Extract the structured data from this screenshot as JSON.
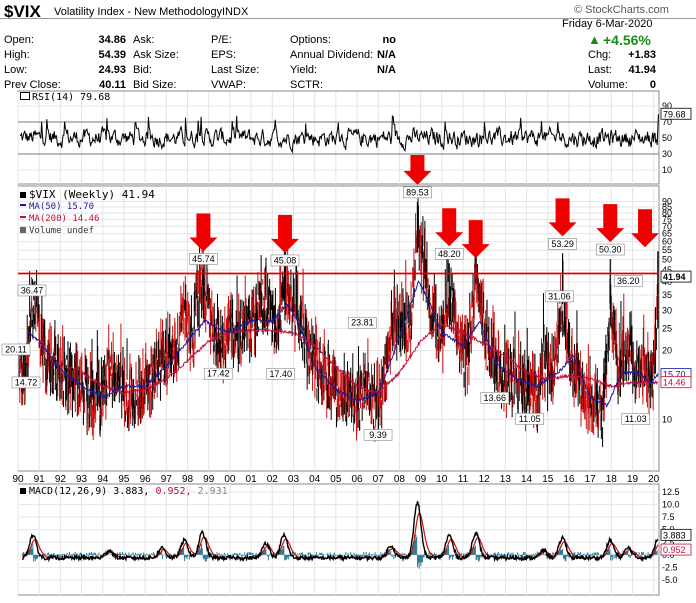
{
  "header": {
    "symbol": "$VIX",
    "description": "Volatility Index - New Methodology",
    "exchange": "INDX",
    "watermark": "© StockCharts.com",
    "date": "Friday  6-Mar-2020",
    "change_pct": "+4.56%",
    "col1": [
      {
        "label": "Open:",
        "value": "34.86"
      },
      {
        "label": "High:",
        "value": "54.39"
      },
      {
        "label": "Low:",
        "value": "24.93"
      },
      {
        "label": "Prev Close:",
        "value": "40.11"
      }
    ],
    "col2": [
      {
        "label": "Ask:",
        "value": ""
      },
      {
        "label": "Ask Size:",
        "value": ""
      },
      {
        "label": "Bid:",
        "value": ""
      },
      {
        "label": "Bid Size:",
        "value": ""
      }
    ],
    "col3": [
      {
        "label": "P/E:",
        "value": ""
      },
      {
        "label": "EPS:",
        "value": ""
      },
      {
        "label": "Last Size:",
        "value": ""
      },
      {
        "label": "VWAP:",
        "value": ""
      }
    ],
    "col4": [
      {
        "label": "Options:",
        "value": "no"
      },
      {
        "label": "Annual Dividend:",
        "value": "N/A"
      },
      {
        "label": "Yield:",
        "value": "N/A"
      },
      {
        "label": "SCTR:",
        "value": ""
      }
    ],
    "col5": [
      {
        "label": "Chg:",
        "value": "+1.83"
      },
      {
        "label": "Last:",
        "value": "41.94"
      },
      {
        "label": "Volume:",
        "value": "0"
      }
    ]
  },
  "chart_data": [
    {
      "type": "line",
      "panel": "rsi",
      "legend": "RSI(14) 79.68",
      "current_value": "79.68",
      "y_ticks": [
        "90",
        "70",
        "50",
        "30",
        "10"
      ],
      "ylim": [
        0,
        100
      ],
      "levels": [
        30,
        70
      ],
      "colors": {
        "line": "#000000"
      }
    },
    {
      "type": "bar",
      "panel": "price",
      "style": "ohlc",
      "scale": "log",
      "legend": [
        {
          "text": "$VIX (Weekly) 41.94",
          "color": "#000000",
          "icon": "black-square-icon"
        },
        {
          "text": "MA(50) 15.70",
          "color": "#1a1aa0",
          "icon": "blue-line-icon"
        },
        {
          "text": "MA(200) 14.46",
          "color": "#c0103a",
          "icon": "red-line-icon"
        },
        {
          "text": "Volume undef",
          "color": "#555555",
          "icon": "volume-bars-icon"
        }
      ],
      "ylim": [
        6.5,
        95
      ],
      "y_ticks": [
        "90",
        "85",
        "80",
        "75",
        "70",
        "65",
        "60",
        "55",
        "50",
        "45",
        "40",
        "35",
        "30",
        "25",
        "20",
        "15",
        "10"
      ],
      "current_labels": [
        {
          "value": 41.94,
          "text": "41.94",
          "style": "black"
        },
        {
          "value": 15.7,
          "text": "15.70",
          "style": "blue"
        },
        {
          "value": 14.46,
          "text": "14.46",
          "style": "red"
        }
      ],
      "horizontal_line": 43.5,
      "x_ticks": [
        "90",
        "91",
        "92",
        "93",
        "94",
        "95",
        "96",
        "97",
        "98",
        "99",
        "00",
        "01",
        "02",
        "03",
        "04",
        "05",
        "06",
        "07",
        "08",
        "09",
        "10",
        "11",
        "12",
        "13",
        "14",
        "15",
        "16",
        "17",
        "18",
        "19",
        "20"
      ],
      "x_range": [
        1990.0,
        2020.25
      ],
      "colors": {
        "up": "#000000",
        "down": "#cc1111",
        "ma50": "#1a1aa0",
        "ma200": "#c0103a",
        "hline": "#dd0000",
        "arrow": "#ee0000"
      },
      "annotations": [
        {
          "x": 1990.05,
          "y": 36.47,
          "text": "36.47"
        },
        {
          "x": 1990.0,
          "y": 20.11,
          "text": "20.11"
        },
        {
          "x": 1990.3,
          "y": 14.72,
          "text": "14.72"
        },
        {
          "x": 1998.75,
          "y": 45.74,
          "text": "45.74"
        },
        {
          "x": 1999.45,
          "y": 17.42,
          "text": "17.42"
        },
        {
          "x": 2002.6,
          "y": 45.08,
          "text": "45.08"
        },
        {
          "x": 2002.4,
          "y": 17.4,
          "text": "17.40"
        },
        {
          "x": 2006.25,
          "y": 23.81,
          "text": "23.81"
        },
        {
          "x": 2006.85,
          "y": 9.39,
          "text": "9.39"
        },
        {
          "x": 2008.85,
          "y": 89.53,
          "text": "89.53"
        },
        {
          "x": 2010.35,
          "y": 48.2,
          "text": "48.20"
        },
        {
          "x": 2012.5,
          "y": 13.66,
          "text": "13.66"
        },
        {
          "x": 2014.15,
          "y": 11.05,
          "text": "11.05"
        },
        {
          "x": 2015.55,
          "y": 31.06,
          "text": "31.06"
        },
        {
          "x": 2015.7,
          "y": 53.29,
          "text": "53.29"
        },
        {
          "x": 2017.95,
          "y": 50.3,
          "text": "50.30"
        },
        {
          "x": 2018.8,
          "y": 36.2,
          "text": "36.20"
        },
        {
          "x": 2019.15,
          "y": 11.03,
          "text": "11.03"
        }
      ],
      "arrows": [
        1998.75,
        2002.6,
        2008.85,
        2010.35,
        2011.6,
        2015.7,
        2017.95,
        2020.0
      ],
      "anchors": [
        [
          1990.0,
          17
        ],
        [
          1990.3,
          14.7
        ],
        [
          1990.6,
          27
        ],
        [
          1990.8,
          35
        ],
        [
          1991.0,
          24
        ],
        [
          1991.3,
          18
        ],
        [
          1991.7,
          17
        ],
        [
          1992.0,
          16
        ],
        [
          1992.5,
          15
        ],
        [
          1993.0,
          13
        ],
        [
          1993.5,
          12
        ],
        [
          1994.0,
          11.5
        ],
        [
          1994.3,
          17
        ],
        [
          1994.6,
          15
        ],
        [
          1995.0,
          13
        ],
        [
          1995.5,
          12
        ],
        [
          1996.0,
          13.5
        ],
        [
          1996.5,
          16
        ],
        [
          1997.0,
          18
        ],
        [
          1997.5,
          20
        ],
        [
          1997.85,
          30
        ],
        [
          1998.2,
          22
        ],
        [
          1998.75,
          40
        ],
        [
          1999.2,
          25
        ],
        [
          1999.5,
          20
        ],
        [
          2000.0,
          24
        ],
        [
          2000.5,
          22
        ],
        [
          2001.0,
          26
        ],
        [
          2001.7,
          33
        ],
        [
          2002.2,
          22
        ],
        [
          2002.6,
          40
        ],
        [
          2003.0,
          30
        ],
        [
          2003.3,
          26
        ],
        [
          2003.7,
          19
        ],
        [
          2004.0,
          17
        ],
        [
          2004.5,
          15
        ],
        [
          2005.0,
          13
        ],
        [
          2005.5,
          12
        ],
        [
          2006.0,
          11.5
        ],
        [
          2006.5,
          14
        ],
        [
          2006.85,
          11
        ],
        [
          2007.3,
          14
        ],
        [
          2007.6,
          25
        ],
        [
          2008.0,
          26
        ],
        [
          2008.5,
          24
        ],
        [
          2008.85,
          65
        ],
        [
          2009.2,
          42
        ],
        [
          2009.6,
          27
        ],
        [
          2010.0,
          22
        ],
        [
          2010.35,
          36
        ],
        [
          2010.8,
          21
        ],
        [
          2011.2,
          18
        ],
        [
          2011.6,
          40
        ],
        [
          2012.0,
          23
        ],
        [
          2012.5,
          17
        ],
        [
          2013.0,
          14
        ],
        [
          2013.5,
          15
        ],
        [
          2014.0,
          13
        ],
        [
          2014.5,
          12
        ],
        [
          2014.8,
          18
        ],
        [
          2015.2,
          14
        ],
        [
          2015.7,
          33
        ],
        [
          2016.0,
          20
        ],
        [
          2016.5,
          14
        ],
        [
          2017.0,
          11.5
        ],
        [
          2017.6,
          10.5
        ],
        [
          2017.95,
          30
        ],
        [
          2018.3,
          15
        ],
        [
          2018.8,
          22
        ],
        [
          2019.2,
          15
        ],
        [
          2019.6,
          16
        ],
        [
          2019.9,
          13.5
        ],
        [
          2020.1,
          20
        ],
        [
          2020.2,
          40
        ]
      ],
      "ma50_anchors": [
        [
          1990.5,
          24
        ],
        [
          1991.0,
          22
        ],
        [
          1992.0,
          16.5
        ],
        [
          1993.0,
          14
        ],
        [
          1994.0,
          12.5
        ],
        [
          1995.0,
          14
        ],
        [
          1996.0,
          14
        ],
        [
          1997.0,
          17
        ],
        [
          1998.0,
          22
        ],
        [
          1998.8,
          27
        ],
        [
          1999.5,
          25
        ],
        [
          2000.0,
          24
        ],
        [
          2001.0,
          27
        ],
        [
          2002.0,
          27
        ],
        [
          2002.7,
          32
        ],
        [
          2003.2,
          27
        ],
        [
          2004.0,
          17
        ],
        [
          2005.0,
          13.5
        ],
        [
          2006.0,
          12
        ],
        [
          2007.0,
          13
        ],
        [
          2007.5,
          17
        ],
        [
          2008.0,
          23
        ],
        [
          2008.9,
          40
        ],
        [
          2009.4,
          33
        ],
        [
          2010.0,
          24
        ],
        [
          2011.0,
          21
        ],
        [
          2011.8,
          27
        ],
        [
          2012.5,
          18
        ],
        [
          2013.5,
          15
        ],
        [
          2014.5,
          14
        ],
        [
          2015.5,
          16
        ],
        [
          2016.2,
          19
        ],
        [
          2017.0,
          12.5
        ],
        [
          2017.8,
          11.5
        ],
        [
          2018.5,
          16
        ],
        [
          2019.2,
          16
        ],
        [
          2019.9,
          14.5
        ],
        [
          2020.2,
          15.7
        ]
      ],
      "ma200_anchors": [
        [
          1993.0,
          16
        ],
        [
          1994.0,
          14
        ],
        [
          1995.0,
          13
        ],
        [
          1996.0,
          13.5
        ],
        [
          1997.0,
          15
        ],
        [
          1998.0,
          18
        ],
        [
          1999.0,
          22
        ],
        [
          2000.0,
          24
        ],
        [
          2001.0,
          24.5
        ],
        [
          2002.0,
          24.5
        ],
        [
          2003.0,
          24
        ],
        [
          2004.0,
          21
        ],
        [
          2005.0,
          17
        ],
        [
          2006.0,
          14
        ],
        [
          2007.0,
          13
        ],
        [
          2008.0,
          16
        ],
        [
          2009.0,
          22
        ],
        [
          2010.0,
          26
        ],
        [
          2011.0,
          24
        ],
        [
          2012.0,
          21.5
        ],
        [
          2013.0,
          19
        ],
        [
          2014.0,
          16
        ],
        [
          2015.0,
          15
        ],
        [
          2016.0,
          15.5
        ],
        [
          2017.0,
          15
        ],
        [
          2018.0,
          14
        ],
        [
          2019.0,
          14.5
        ],
        [
          2020.2,
          14.46
        ]
      ]
    },
    {
      "type": "line",
      "panel": "macd",
      "legend": [
        {
          "text": "MACD(12,26,9) 3.883,",
          "color": "#000000"
        },
        {
          "text": " 0.952,",
          "color": "#c0103a"
        },
        {
          "text": " 2.931",
          "color": "#888888"
        }
      ],
      "ylim": [
        -5.0,
        12.5
      ],
      "y_ticks": [
        "12.5",
        "10.0",
        "7.5",
        "5.0",
        "2.5",
        "0.0",
        "-2.5",
        "-5.0"
      ],
      "current_labels": [
        {
          "value": 3.883,
          "text": "3.883",
          "style": "black"
        },
        {
          "value": 0.952,
          "text": "0.952",
          "style": "red"
        }
      ],
      "colors": {
        "macd": "#000000",
        "signal": "#cc1111",
        "hist": "#2a7a9a"
      },
      "spikes": [
        [
          1990.7,
          4.5
        ],
        [
          1994.3,
          1.5
        ],
        [
          1996.8,
          2.0
        ],
        [
          1997.85,
          3.5
        ],
        [
          1998.7,
          5.0
        ],
        [
          2001.7,
          3.0
        ],
        [
          2002.55,
          4.5
        ],
        [
          2007.6,
          2.5
        ],
        [
          2008.85,
          11.0
        ],
        [
          2010.35,
          4.5
        ],
        [
          2011.6,
          5.0
        ],
        [
          2014.8,
          1.5
        ],
        [
          2015.7,
          4.0
        ],
        [
          2017.95,
          3.5
        ],
        [
          2018.8,
          2.0
        ],
        [
          2020.2,
          3.9
        ]
      ]
    }
  ]
}
